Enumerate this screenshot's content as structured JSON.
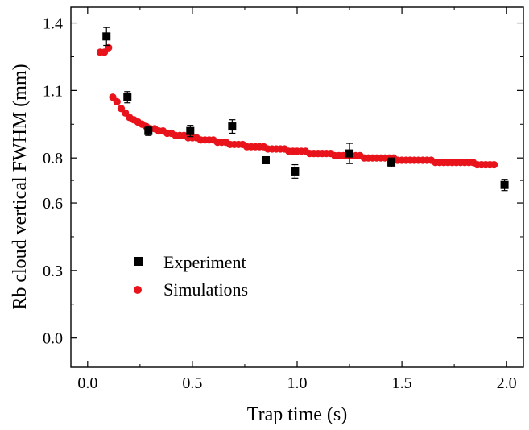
{
  "chart_data": {
    "type": "scatter",
    "title": "",
    "xlabel": "Trap time (s)",
    "ylabel": "Rb cloud vertical FWHM (mm)",
    "xlim": [
      -0.08,
      2.08
    ],
    "ylim": [
      -0.13,
      1.47
    ],
    "x_ticks": [
      {
        "value": 0.0,
        "label": "0.0"
      },
      {
        "value": 0.5,
        "label": "0.5"
      },
      {
        "value": 1.0,
        "label": "1.0"
      },
      {
        "value": 1.5,
        "label": "1.5"
      },
      {
        "value": 2.0,
        "label": "2.0"
      }
    ],
    "y_ticks": [
      {
        "value": 0.0,
        "label": "0.0"
      },
      {
        "value": 0.3,
        "label": "0.3"
      },
      {
        "value": 0.6,
        "label": "0.6"
      },
      {
        "value": 0.8,
        "label": "0.8"
      },
      {
        "value": 1.1,
        "label": "1.1"
      },
      {
        "value": 1.4,
        "label": "1.4"
      }
    ],
    "grid": false,
    "legend_position": "center-left",
    "series": [
      {
        "name": "Experiment",
        "marker": "square",
        "color": "#000000",
        "points": [
          {
            "x": 0.09,
            "y": 1.34,
            "err": 0.04
          },
          {
            "x": 0.19,
            "y": 1.07,
            "err": 0.025
          },
          {
            "x": 0.29,
            "y": 0.92,
            "err": 0.02
          },
          {
            "x": 0.49,
            "y": 0.92,
            "err": 0.025
          },
          {
            "x": 0.69,
            "y": 0.94,
            "err": 0.03
          },
          {
            "x": 0.85,
            "y": 0.79,
            "err": 0.015
          },
          {
            "x": 0.99,
            "y": 0.74,
            "err": 0.03
          },
          {
            "x": 1.25,
            "y": 0.82,
            "err": 0.045
          },
          {
            "x": 1.45,
            "y": 0.78,
            "err": 0.02
          },
          {
            "x": 1.99,
            "y": 0.68,
            "err": 0.025
          }
        ]
      },
      {
        "name": "Simulations",
        "marker": "circle",
        "color": "#e8131b",
        "points": [
          {
            "x": 0.06,
            "y": 1.27
          },
          {
            "x": 0.08,
            "y": 1.27
          },
          {
            "x": 0.1,
            "y": 1.29
          },
          {
            "x": 0.12,
            "y": 1.07
          },
          {
            "x": 0.14,
            "y": 1.05
          },
          {
            "x": 0.16,
            "y": 1.02
          },
          {
            "x": 0.18,
            "y": 1.0
          },
          {
            "x": 0.2,
            "y": 0.98
          },
          {
            "x": 0.22,
            "y": 0.97
          },
          {
            "x": 0.24,
            "y": 0.96
          },
          {
            "x": 0.26,
            "y": 0.95
          },
          {
            "x": 0.28,
            "y": 0.94
          },
          {
            "x": 0.3,
            "y": 0.93
          },
          {
            "x": 0.32,
            "y": 0.93
          },
          {
            "x": 0.34,
            "y": 0.92
          },
          {
            "x": 0.36,
            "y": 0.92
          },
          {
            "x": 0.38,
            "y": 0.91
          },
          {
            "x": 0.4,
            "y": 0.91
          },
          {
            "x": 0.42,
            "y": 0.9
          },
          {
            "x": 0.44,
            "y": 0.9
          },
          {
            "x": 0.46,
            "y": 0.9
          },
          {
            "x": 0.48,
            "y": 0.89
          },
          {
            "x": 0.5,
            "y": 0.89
          },
          {
            "x": 0.52,
            "y": 0.89
          },
          {
            "x": 0.54,
            "y": 0.88
          },
          {
            "x": 0.56,
            "y": 0.88
          },
          {
            "x": 0.58,
            "y": 0.88
          },
          {
            "x": 0.6,
            "y": 0.88
          },
          {
            "x": 0.62,
            "y": 0.87
          },
          {
            "x": 0.64,
            "y": 0.87
          },
          {
            "x": 0.66,
            "y": 0.87
          },
          {
            "x": 0.68,
            "y": 0.86
          },
          {
            "x": 0.7,
            "y": 0.86
          },
          {
            "x": 0.72,
            "y": 0.86
          },
          {
            "x": 0.74,
            "y": 0.86
          },
          {
            "x": 0.76,
            "y": 0.85
          },
          {
            "x": 0.78,
            "y": 0.85
          },
          {
            "x": 0.8,
            "y": 0.85
          },
          {
            "x": 0.82,
            "y": 0.85
          },
          {
            "x": 0.84,
            "y": 0.85
          },
          {
            "x": 0.86,
            "y": 0.84
          },
          {
            "x": 0.88,
            "y": 0.84
          },
          {
            "x": 0.9,
            "y": 0.84
          },
          {
            "x": 0.92,
            "y": 0.84
          },
          {
            "x": 0.94,
            "y": 0.84
          },
          {
            "x": 0.96,
            "y": 0.83
          },
          {
            "x": 0.98,
            "y": 0.83
          },
          {
            "x": 1.0,
            "y": 0.83
          },
          {
            "x": 1.02,
            "y": 0.83
          },
          {
            "x": 1.04,
            "y": 0.83
          },
          {
            "x": 1.06,
            "y": 0.82
          },
          {
            "x": 1.08,
            "y": 0.82
          },
          {
            "x": 1.1,
            "y": 0.82
          },
          {
            "x": 1.12,
            "y": 0.82
          },
          {
            "x": 1.14,
            "y": 0.82
          },
          {
            "x": 1.16,
            "y": 0.82
          },
          {
            "x": 1.18,
            "y": 0.81
          },
          {
            "x": 1.2,
            "y": 0.81
          },
          {
            "x": 1.22,
            "y": 0.81
          },
          {
            "x": 1.24,
            "y": 0.81
          },
          {
            "x": 1.26,
            "y": 0.81
          },
          {
            "x": 1.28,
            "y": 0.81
          },
          {
            "x": 1.3,
            "y": 0.81
          },
          {
            "x": 1.32,
            "y": 0.8
          },
          {
            "x": 1.34,
            "y": 0.8
          },
          {
            "x": 1.36,
            "y": 0.8
          },
          {
            "x": 1.38,
            "y": 0.8
          },
          {
            "x": 1.4,
            "y": 0.8
          },
          {
            "x": 1.42,
            "y": 0.8
          },
          {
            "x": 1.44,
            "y": 0.8
          },
          {
            "x": 1.46,
            "y": 0.8
          },
          {
            "x": 1.48,
            "y": 0.79
          },
          {
            "x": 1.5,
            "y": 0.79
          },
          {
            "x": 1.52,
            "y": 0.79
          },
          {
            "x": 1.54,
            "y": 0.79
          },
          {
            "x": 1.56,
            "y": 0.79
          },
          {
            "x": 1.58,
            "y": 0.79
          },
          {
            "x": 1.6,
            "y": 0.79
          },
          {
            "x": 1.62,
            "y": 0.79
          },
          {
            "x": 1.64,
            "y": 0.79
          },
          {
            "x": 1.66,
            "y": 0.78
          },
          {
            "x": 1.68,
            "y": 0.78
          },
          {
            "x": 1.7,
            "y": 0.78
          },
          {
            "x": 1.72,
            "y": 0.78
          },
          {
            "x": 1.74,
            "y": 0.78
          },
          {
            "x": 1.76,
            "y": 0.78
          },
          {
            "x": 1.78,
            "y": 0.78
          },
          {
            "x": 1.8,
            "y": 0.78
          },
          {
            "x": 1.82,
            "y": 0.78
          },
          {
            "x": 1.84,
            "y": 0.78
          },
          {
            "x": 1.86,
            "y": 0.77
          },
          {
            "x": 1.88,
            "y": 0.77
          },
          {
            "x": 1.9,
            "y": 0.77
          },
          {
            "x": 1.92,
            "y": 0.77
          },
          {
            "x": 1.94,
            "y": 0.77
          }
        ]
      }
    ]
  }
}
